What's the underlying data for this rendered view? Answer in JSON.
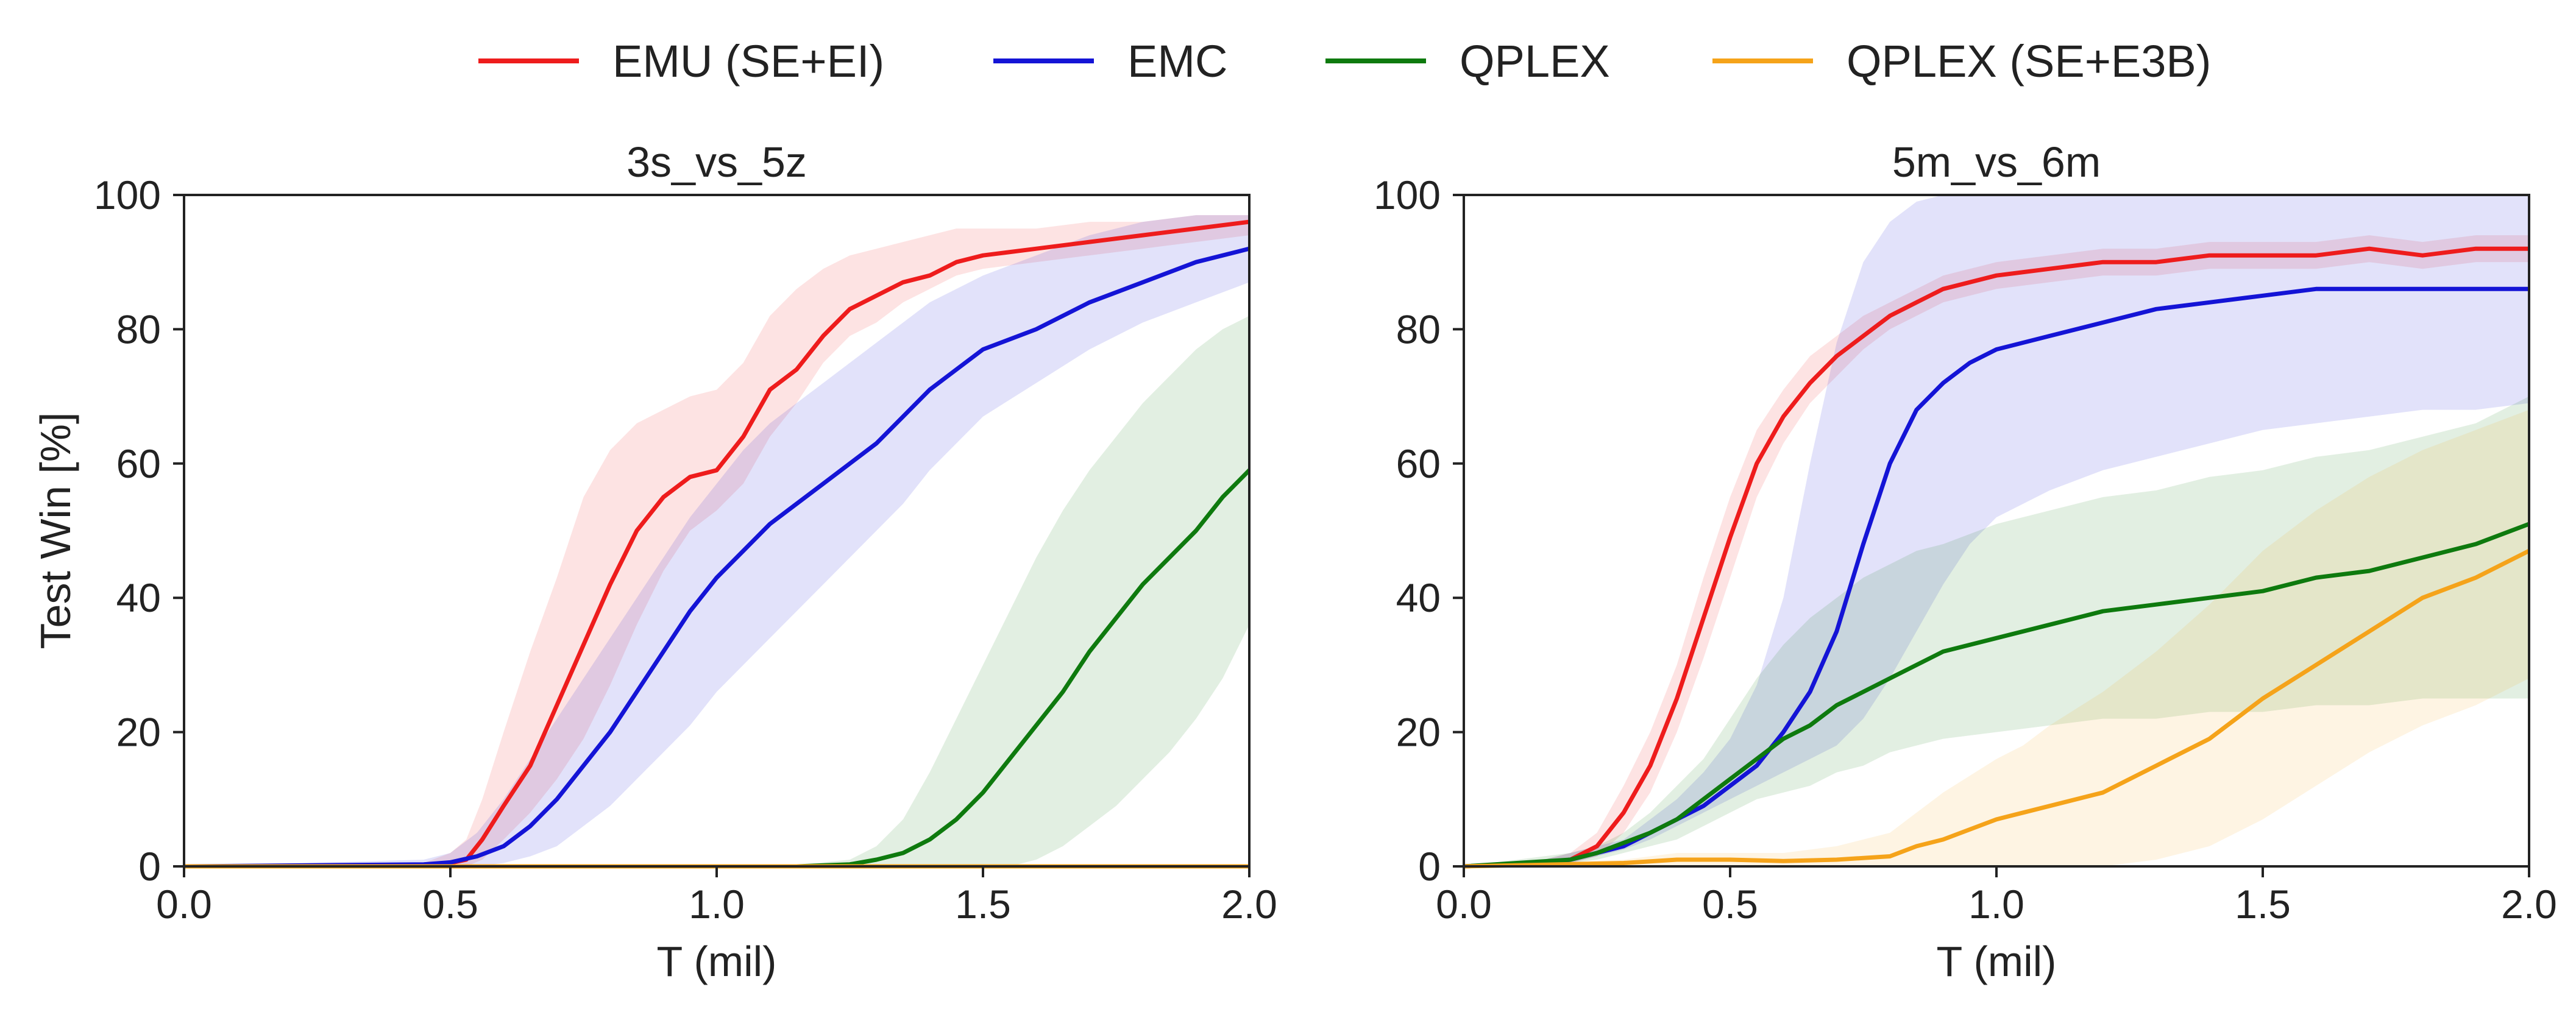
{
  "legend": [
    {
      "name": "EMU (SE+EI)",
      "color": "#ee1c1c"
    },
    {
      "name": "EMC",
      "color": "#1414d6"
    },
    {
      "name": "QPLEX",
      "color": "#0e7a0e"
    },
    {
      "name": "QPLEX (SE+E3B)",
      "color": "#f5a31a"
    }
  ],
  "chart_data": [
    {
      "type": "line",
      "title": "3s_vs_5z",
      "xlabel": "T (mil)",
      "ylabel": "Test Win [%]",
      "xlim": [
        0,
        2.0
      ],
      "ylim": [
        0,
        100
      ],
      "xticks": [
        0.0,
        0.5,
        1.0,
        1.5,
        2.0
      ],
      "xtick_labels": [
        "0.0",
        "0.5",
        "1.0",
        "1.5",
        "2.0"
      ],
      "yticks": [
        0,
        20,
        40,
        60,
        80,
        100
      ],
      "ytick_labels": [
        "0",
        "20",
        "40",
        "60",
        "80",
        "100"
      ],
      "series": [
        {
          "name": "EMU (SE+EI)",
          "color": "#ee1c1c",
          "x": [
            0,
            0.45,
            0.5,
            0.53,
            0.56,
            0.6,
            0.65,
            0.7,
            0.75,
            0.8,
            0.85,
            0.9,
            0.95,
            1.0,
            1.05,
            1.1,
            1.15,
            1.2,
            1.25,
            1.3,
            1.35,
            1.4,
            1.45,
            1.5,
            1.6,
            1.7,
            1.8,
            1.9,
            2.0
          ],
          "y": [
            0,
            0,
            0.5,
            1,
            4,
            9,
            15,
            24,
            33,
            42,
            50,
            55,
            58,
            59,
            64,
            71,
            74,
            79,
            83,
            85,
            87,
            88,
            90,
            91,
            92,
            93,
            94,
            95,
            96
          ],
          "lower": [
            0,
            0,
            0,
            0,
            1,
            4,
            8,
            13,
            19,
            27,
            36,
            44,
            50,
            53,
            57,
            64,
            69,
            75,
            79,
            81,
            84,
            86,
            88,
            89,
            90,
            91,
            92,
            93,
            94
          ],
          "upper": [
            0,
            0.5,
            2,
            4,
            10,
            20,
            32,
            43,
            55,
            62,
            66,
            68,
            70,
            71,
            75,
            82,
            86,
            89,
            91,
            92,
            93,
            94,
            95,
            95,
            95,
            96,
            96,
            97,
            97
          ]
        },
        {
          "name": "EMC",
          "color": "#1414d6",
          "x": [
            0,
            0.45,
            0.5,
            0.55,
            0.6,
            0.65,
            0.7,
            0.75,
            0.8,
            0.85,
            0.9,
            0.95,
            1.0,
            1.05,
            1.1,
            1.15,
            1.2,
            1.25,
            1.3,
            1.35,
            1.4,
            1.45,
            1.5,
            1.6,
            1.7,
            1.8,
            1.9,
            2.0
          ],
          "y": [
            0,
            0.3,
            0.6,
            1.5,
            3,
            6,
            10,
            15,
            20,
            26,
            32,
            38,
            43,
            47,
            51,
            54,
            57,
            60,
            63,
            67,
            71,
            74,
            77,
            80,
            84,
            87,
            90,
            92
          ],
          "lower": [
            0,
            0,
            0,
            0,
            0.5,
            1.5,
            3,
            6,
            9,
            13,
            17,
            21,
            26,
            30,
            34,
            38,
            42,
            46,
            50,
            54,
            59,
            63,
            67,
            72,
            77,
            81,
            84,
            87
          ],
          "upper": [
            0,
            1,
            2,
            5,
            10,
            16,
            22,
            28,
            34,
            40,
            46,
            52,
            57,
            62,
            66,
            69,
            72,
            75,
            78,
            81,
            84,
            86,
            88,
            91,
            94,
            96,
            97,
            97
          ]
        },
        {
          "name": "QPLEX",
          "color": "#0e7a0e",
          "x": [
            0,
            1.15,
            1.25,
            1.3,
            1.35,
            1.4,
            1.45,
            1.5,
            1.55,
            1.6,
            1.65,
            1.7,
            1.75,
            1.8,
            1.85,
            1.9,
            1.95,
            2.0
          ],
          "y": [
            0,
            0,
            0.3,
            1,
            2,
            4,
            7,
            11,
            16,
            21,
            26,
            32,
            37,
            42,
            46,
            50,
            55,
            59
          ],
          "lower": [
            0,
            0,
            0,
            0,
            0,
            0,
            0,
            0,
            0,
            1,
            3,
            6,
            9,
            13,
            17,
            22,
            28,
            36
          ],
          "upper": [
            0,
            0.2,
            1,
            3,
            7,
            14,
            22,
            30,
            38,
            46,
            53,
            59,
            64,
            69,
            73,
            77,
            80,
            82
          ]
        },
        {
          "name": "QPLEX (SE+E3B)",
          "color": "#f5a31a",
          "x": [
            0,
            2.0
          ],
          "y": [
            0,
            0
          ],
          "lower": [
            0,
            0
          ],
          "upper": [
            0,
            0
          ]
        }
      ]
    },
    {
      "type": "line",
      "title": "5m_vs_6m",
      "xlabel": "T (mil)",
      "ylabel": "",
      "xlim": [
        0,
        2.0
      ],
      "ylim": [
        0,
        100
      ],
      "xticks": [
        0.0,
        0.5,
        1.0,
        1.5,
        2.0
      ],
      "xtick_labels": [
        "0.0",
        "0.5",
        "1.0",
        "1.5",
        "2.0"
      ],
      "yticks": [
        0,
        20,
        40,
        60,
        80,
        100
      ],
      "ytick_labels": [
        "0",
        "20",
        "40",
        "60",
        "80",
        "100"
      ],
      "series": [
        {
          "name": "EMU (SE+EI)",
          "color": "#ee1c1c",
          "x": [
            0,
            0.15,
            0.2,
            0.25,
            0.3,
            0.35,
            0.4,
            0.45,
            0.5,
            0.55,
            0.6,
            0.65,
            0.7,
            0.75,
            0.8,
            0.85,
            0.9,
            1.0,
            1.1,
            1.2,
            1.3,
            1.4,
            1.5,
            1.6,
            1.7,
            1.8,
            1.9,
            2.0
          ],
          "y": [
            0,
            0.5,
            1,
            3,
            8,
            15,
            25,
            37,
            49,
            60,
            67,
            72,
            76,
            79,
            82,
            84,
            86,
            88,
            89,
            90,
            90,
            91,
            91,
            91,
            92,
            91,
            92,
            92
          ],
          "lower": [
            0,
            0,
            0.5,
            1.5,
            5,
            11,
            20,
            31,
            43,
            55,
            63,
            69,
            73,
            77,
            80,
            82,
            84,
            86,
            87,
            88,
            88,
            89,
            89,
            89,
            90,
            89,
            90,
            90
          ],
          "upper": [
            0,
            1,
            2,
            5,
            12,
            20,
            30,
            43,
            55,
            65,
            71,
            76,
            79,
            82,
            84,
            86,
            88,
            90,
            91,
            92,
            92,
            93,
            93,
            93,
            94,
            93,
            94,
            94
          ]
        },
        {
          "name": "EMC",
          "color": "#1414d6",
          "x": [
            0,
            0.15,
            0.2,
            0.25,
            0.3,
            0.35,
            0.4,
            0.45,
            0.5,
            0.55,
            0.6,
            0.65,
            0.7,
            0.75,
            0.8,
            0.85,
            0.9,
            0.95,
            1.0,
            1.1,
            1.2,
            1.3,
            1.4,
            1.5,
            1.6,
            1.7,
            1.8,
            1.9,
            2.0
          ],
          "y": [
            0,
            0.5,
            1,
            2,
            3,
            5,
            7,
            9,
            12,
            15,
            20,
            26,
            35,
            48,
            60,
            68,
            72,
            75,
            77,
            79,
            81,
            83,
            84,
            85,
            86,
            86,
            86,
            86,
            86
          ],
          "lower": [
            0,
            0.3,
            0.5,
            1.5,
            2.5,
            4,
            6,
            8,
            10,
            12,
            14,
            16,
            18,
            22,
            28,
            35,
            42,
            48,
            52,
            56,
            59,
            61,
            63,
            65,
            66,
            67,
            68,
            68,
            69
          ],
          "upper": [
            0,
            1,
            2,
            3,
            4,
            7,
            10,
            14,
            19,
            27,
            40,
            60,
            78,
            90,
            96,
            99,
            100,
            100,
            100,
            100,
            100,
            100,
            100,
            100,
            100,
            100,
            100,
            100,
            100
          ]
        },
        {
          "name": "QPLEX",
          "color": "#0e7a0e",
          "x": [
            0,
            0.2,
            0.25,
            0.3,
            0.35,
            0.4,
            0.45,
            0.5,
            0.55,
            0.6,
            0.65,
            0.7,
            0.75,
            0.8,
            0.85,
            0.9,
            1.0,
            1.1,
            1.2,
            1.3,
            1.4,
            1.5,
            1.6,
            1.7,
            1.8,
            1.9,
            2.0
          ],
          "y": [
            0,
            1,
            2,
            3.5,
            5,
            7,
            10,
            13,
            16,
            19,
            21,
            24,
            26,
            28,
            30,
            32,
            34,
            36,
            38,
            39,
            40,
            41,
            43,
            44,
            46,
            48,
            51
          ],
          "lower": [
            0,
            0.5,
            1,
            2,
            3,
            4,
            6,
            8,
            10,
            11,
            12,
            14,
            15,
            17,
            18,
            19,
            20,
            21,
            22,
            22,
            23,
            23,
            24,
            24,
            25,
            25,
            25
          ],
          "upper": [
            0,
            2,
            3,
            5,
            8,
            12,
            16,
            22,
            28,
            33,
            37,
            40,
            43,
            45,
            47,
            48,
            51,
            53,
            55,
            56,
            58,
            59,
            61,
            62,
            64,
            66,
            70
          ]
        },
        {
          "name": "QPLEX (SE+E3B)",
          "color": "#f5a31a",
          "x": [
            0,
            0.3,
            0.4,
            0.5,
            0.6,
            0.7,
            0.8,
            0.85,
            0.9,
            1.0,
            1.05,
            1.1,
            1.2,
            1.3,
            1.4,
            1.5,
            1.6,
            1.7,
            1.8,
            1.9,
            2.0
          ],
          "y": [
            0,
            0.5,
            1,
            1,
            0.8,
            1,
            1.5,
            3,
            4,
            7,
            8,
            9,
            11,
            15,
            19,
            25,
            30,
            35,
            40,
            43,
            47
          ],
          "lower": [
            0,
            0,
            0,
            0,
            0,
            0,
            0,
            0,
            0,
            0,
            0,
            0,
            0,
            1,
            3,
            7,
            12,
            17,
            21,
            24,
            28
          ],
          "upper": [
            0,
            1,
            2,
            2,
            2,
            3,
            5,
            8,
            11,
            16,
            18,
            21,
            26,
            32,
            39,
            47,
            53,
            58,
            62,
            65,
            68
          ]
        }
      ]
    }
  ]
}
